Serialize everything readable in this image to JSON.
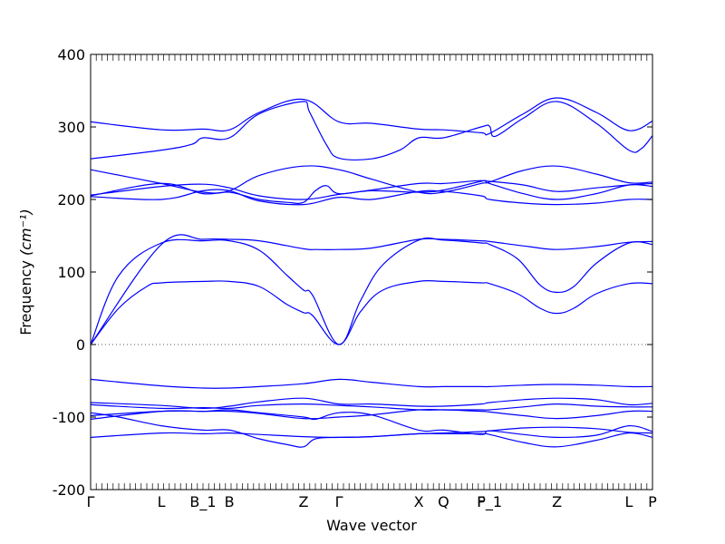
{
  "chart_data": {
    "type": "line",
    "title": "",
    "xlabel": "Wave vector",
    "ylabel": "Frequency",
    "ylabel_unit": "(cm⁻¹)",
    "ylim": [
      -200,
      400
    ],
    "yticks": [
      400,
      300,
      200,
      100,
      0,
      -100,
      -200
    ],
    "xlim": [
      0,
      100
    ],
    "zero_line": {
      "y": 0,
      "style": "dotted"
    },
    "series_color": "#0000ff",
    "x_ticks": [
      {
        "label": "Γ",
        "x": 0
      },
      {
        "label": "L",
        "x": 12.6
      },
      {
        "label": "B_1",
        "x": 20.0
      },
      {
        "label": "B",
        "x": 24.7
      },
      {
        "label": "Z",
        "x": 37.9
      },
      {
        "label": "Γ",
        "x": 44.2
      },
      {
        "label": "X",
        "x": 58.4
      },
      {
        "label": "Q",
        "x": 62.8
      },
      {
        "label": "F",
        "x": 69.5
      },
      {
        "label": "P_1",
        "x": 71.0
      },
      {
        "label": "Z",
        "x": 83.0
      },
      {
        "label": "L",
        "x": 95.8
      },
      {
        "label": "P",
        "x": 100
      }
    ],
    "series": [
      {
        "x": [
          0,
          12.6,
          20,
          24.7,
          30,
          37.9,
          40,
          44.2,
          50,
          58.4,
          62.8,
          69.5,
          71,
          78,
          83,
          90,
          95.8,
          100
        ],
        "y": [
          0,
          138,
          145,
          145,
          143,
          132,
          131,
          131,
          133,
          145,
          145,
          143,
          142,
          135,
          131,
          135,
          141,
          142
        ]
      },
      {
        "x": [
          0,
          5,
          12.6,
          20,
          24.7,
          30,
          35,
          37.9,
          39.5,
          44.2,
          48,
          52,
          58.4,
          62.8,
          69.5,
          71,
          76,
          80,
          83,
          86,
          90,
          95.8,
          100
        ],
        "y": [
          0,
          95,
          140,
          143,
          143,
          130,
          95,
          75,
          68,
          0,
          60,
          110,
          144,
          144,
          140,
          138,
          118,
          82,
          72,
          80,
          112,
          140,
          138
        ]
      },
      {
        "x": [
          0,
          5,
          10,
          12.6,
          20,
          24.7,
          30,
          35,
          37.9,
          39.5,
          44.2,
          48,
          52,
          58.4,
          62.8,
          69.5,
          71,
          76,
          80,
          83,
          86,
          90,
          95.8,
          100
        ],
        "y": [
          0,
          50,
          80,
          85,
          87,
          87,
          80,
          55,
          44,
          40,
          0,
          45,
          75,
          87,
          87,
          85,
          84,
          70,
          50,
          43,
          50,
          70,
          84,
          84
        ]
      },
      {
        "x": [
          0,
          12.6,
          20,
          24.7,
          30,
          37.9,
          44.2,
          50,
          58.4,
          62.8,
          69.5,
          71,
          77,
          83,
          90,
          95.8,
          100
        ],
        "y": [
          307,
          296,
          297,
          296,
          320,
          338,
          307,
          305,
          297,
          296,
          292,
          291,
          318,
          340,
          320,
          295,
          308
        ]
      },
      {
        "x": [
          0,
          12.6,
          18,
          20,
          24.7,
          30,
          37.9,
          39,
          42,
          44.2,
          50,
          55,
          58.4,
          62.8,
          69.5,
          71,
          72,
          77,
          83,
          90,
          95.8,
          98,
          100
        ],
        "y": [
          256,
          268,
          276,
          285,
          285,
          318,
          335,
          320,
          275,
          257,
          256,
          268,
          285,
          285,
          300,
          301,
          287,
          312,
          335,
          305,
          268,
          270,
          288
        ]
      },
      {
        "x": [
          0,
          12.6,
          20,
          24.7,
          30,
          37.9,
          44.2,
          50,
          58.4,
          62.8,
          69.5,
          71,
          77,
          83,
          90,
          95.8,
          100
        ],
        "y": [
          241,
          222,
          210,
          212,
          233,
          246,
          241,
          228,
          210,
          210,
          222,
          224,
          240,
          246,
          235,
          223,
          224
        ]
      },
      {
        "x": [
          0,
          12.6,
          20,
          24.7,
          30,
          37.9,
          44.2,
          50,
          58.4,
          62.8,
          69.5,
          71,
          77,
          83,
          90,
          95.8,
          100
        ],
        "y": [
          206,
          218,
          221,
          216,
          205,
          200,
          207,
          213,
          222,
          222,
          226,
          222,
          208,
          200,
          208,
          220,
          218
        ]
      },
      {
        "x": [
          0,
          12.6,
          20,
          24.7,
          30,
          35,
          37.9,
          40,
          42,
          44.2,
          50,
          58.4,
          62.8,
          69.5,
          71,
          77,
          83,
          90,
          95.8,
          100
        ],
        "y": [
          205,
          222,
          208,
          210,
          200,
          196,
          196,
          212,
          219,
          208,
          212,
          210,
          213,
          225,
          225,
          220,
          211,
          216,
          220,
          222
        ]
      },
      {
        "x": [
          0,
          12.6,
          20,
          24.7,
          30,
          37.9,
          44.2,
          50,
          58.4,
          62.8,
          69.5,
          71,
          77,
          83,
          90,
          95.8,
          100
        ],
        "y": [
          204,
          200,
          212,
          212,
          198,
          193,
          203,
          200,
          211,
          211,
          205,
          200,
          195,
          193,
          195,
          200,
          200
        ]
      },
      {
        "x": [
          0,
          12.6,
          20,
          24.7,
          30,
          37.9,
          44.2,
          50,
          58.4,
          62.8,
          69.5,
          71,
          77,
          83,
          90,
          95.8,
          100
        ],
        "y": [
          -48,
          -57,
          -60,
          -60,
          -58,
          -54,
          -48,
          -52,
          -58,
          -58,
          -58,
          -58,
          -56,
          -55,
          -56,
          -58,
          -58
        ]
      },
      {
        "x": [
          0,
          12.6,
          20,
          24.7,
          30,
          37.9,
          44.2,
          50,
          58.4,
          62.8,
          69.5,
          71,
          77,
          83,
          90,
          95.8,
          100
        ],
        "y": [
          -80,
          -84,
          -88,
          -85,
          -79,
          -74,
          -82,
          -82,
          -85,
          -85,
          -82,
          -80,
          -76,
          -74,
          -76,
          -83,
          -81
        ]
      },
      {
        "x": [
          0,
          12.6,
          20,
          24.7,
          30,
          37.9,
          44.2,
          50,
          58.4,
          62.8,
          69.5,
          71,
          77,
          83,
          90,
          95.8,
          100
        ],
        "y": [
          -83,
          -88,
          -87,
          -88,
          -84,
          -82,
          -84,
          -86,
          -90,
          -90,
          -90,
          -90,
          -86,
          -82,
          -85,
          -86,
          -86
        ]
      },
      {
        "x": [
          0,
          12.6,
          20,
          24.7,
          30,
          37.9,
          44.2,
          50,
          58.4,
          62.8,
          69.5,
          71,
          77,
          83,
          90,
          95.8,
          100
        ],
        "y": [
          -98,
          -92,
          -92,
          -92,
          -95,
          -102,
          -100,
          -97,
          -90,
          -90,
          -92,
          -93,
          -98,
          -102,
          -98,
          -92,
          -92
        ]
      },
      {
        "x": [
          0,
          12.6,
          20,
          24.7,
          30,
          37.9,
          40,
          44.2,
          50,
          58.4,
          62.8,
          69.5,
          71,
          77,
          83,
          90,
          95.8,
          100
        ],
        "y": [
          -103,
          -92,
          -92,
          -90,
          -94,
          -100,
          -103,
          -94,
          -97,
          -118,
          -118,
          -124,
          -119,
          -124,
          -128,
          -125,
          -112,
          -120
        ]
      },
      {
        "x": [
          0,
          5,
          12.6,
          20,
          24.7,
          30,
          35,
          37.9,
          40,
          44.2,
          50,
          58.4,
          62.8,
          69.5,
          71,
          77,
          83,
          90,
          95.8,
          100
        ],
        "y": [
          -94,
          -100,
          -112,
          -118,
          -118,
          -130,
          -138,
          -141,
          -130,
          -128,
          -127,
          -123,
          -123,
          -123,
          -124,
          -135,
          -141,
          -132,
          -122,
          -128
        ]
      },
      {
        "x": [
          0,
          12.6,
          20,
          24.7,
          30,
          37.9,
          44.2,
          50,
          58.4,
          62.8,
          69.5,
          71,
          77,
          83,
          90,
          95.8,
          100
        ],
        "y": [
          -128,
          -122,
          -123,
          -122,
          -124,
          -127,
          -128,
          -127,
          -123,
          -122,
          -120,
          -119,
          -115,
          -114,
          -116,
          -121,
          -122
        ]
      }
    ]
  }
}
